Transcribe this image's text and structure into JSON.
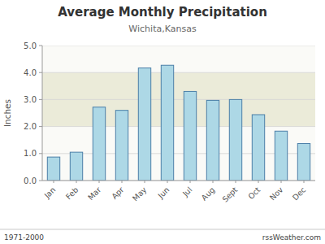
{
  "chart_data": {
    "type": "bar",
    "title": "Average Monthly Precipitation",
    "subtitle": "Wichita,Kansas",
    "ylabel": "Inches",
    "annotations": [
      "1971-2000",
      "rssWeather.com"
    ],
    "categories": [
      "Jan",
      "Feb",
      "Mar",
      "Apr",
      "May",
      "Jun",
      "Jul",
      "Aug",
      "Sept",
      "Oct",
      "Nov",
      "Dec"
    ],
    "values": [
      0.87,
      1.05,
      2.72,
      2.6,
      4.17,
      4.27,
      3.3,
      2.97,
      3.0,
      2.44,
      1.83,
      1.37
    ],
    "color": "#add8e6",
    "band": [
      2.0,
      4.0
    ],
    "ylim": [
      0.0,
      5.0
    ],
    "yticks": [
      {
        "value": 0.0,
        "label": "0.0"
      },
      {
        "value": 1.0,
        "label": "1.0"
      },
      {
        "value": 2.0,
        "label": "2.0"
      },
      {
        "value": 3.0,
        "label": "3.0"
      },
      {
        "value": 4.0,
        "label": "4.0"
      },
      {
        "value": 5.0,
        "label": "5.0"
      }
    ],
    "grid": true
  }
}
